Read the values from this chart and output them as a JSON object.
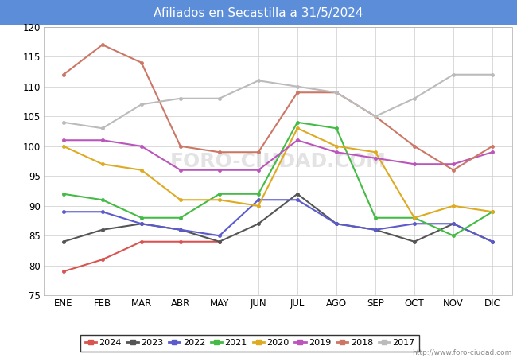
{
  "title": "Afiliados en Secastilla a 31/5/2024",
  "title_bg_color": "#5b8dd9",
  "title_text_color": "white",
  "ylim": [
    75,
    120
  ],
  "yticks": [
    75,
    80,
    85,
    90,
    95,
    100,
    105,
    110,
    115,
    120
  ],
  "months": [
    "ENE",
    "FEB",
    "MAR",
    "ABR",
    "MAY",
    "JUN",
    "JUL",
    "AGO",
    "SEP",
    "OCT",
    "NOV",
    "DIC"
  ],
  "watermark": "FORO-CIUDAD.COM",
  "url": "http://www.foro-ciudad.com",
  "series": {
    "2024": {
      "color": "#d9534f",
      "data": [
        79,
        81,
        84,
        84,
        84,
        null,
        null,
        null,
        null,
        null,
        null,
        null
      ]
    },
    "2023": {
      "color": "#555555",
      "data": [
        84,
        86,
        87,
        86,
        84,
        87,
        92,
        87,
        86,
        84,
        87,
        84
      ]
    },
    "2022": {
      "color": "#5b5bcc",
      "data": [
        89,
        89,
        87,
        86,
        85,
        91,
        91,
        87,
        86,
        87,
        87,
        84
      ]
    },
    "2021": {
      "color": "#44bb44",
      "data": [
        92,
        91,
        88,
        88,
        92,
        92,
        104,
        103,
        88,
        88,
        85,
        89
      ]
    },
    "2020": {
      "color": "#ddaa22",
      "data": [
        100,
        97,
        96,
        91,
        91,
        90,
        103,
        100,
        99,
        88,
        90,
        89
      ]
    },
    "2019": {
      "color": "#bb55bb",
      "data": [
        101,
        101,
        100,
        96,
        96,
        96,
        101,
        99,
        98,
        97,
        97,
        99
      ]
    },
    "2018": {
      "color": "#cc7766",
      "data": [
        112,
        117,
        114,
        100,
        99,
        99,
        109,
        109,
        105,
        100,
        96,
        100
      ]
    },
    "2017": {
      "color": "#bbbbbb",
      "data": [
        104,
        103,
        107,
        108,
        108,
        111,
        110,
        109,
        105,
        108,
        112,
        112
      ]
    }
  },
  "legend_order": [
    "2024",
    "2023",
    "2022",
    "2021",
    "2020",
    "2019",
    "2018",
    "2017"
  ]
}
